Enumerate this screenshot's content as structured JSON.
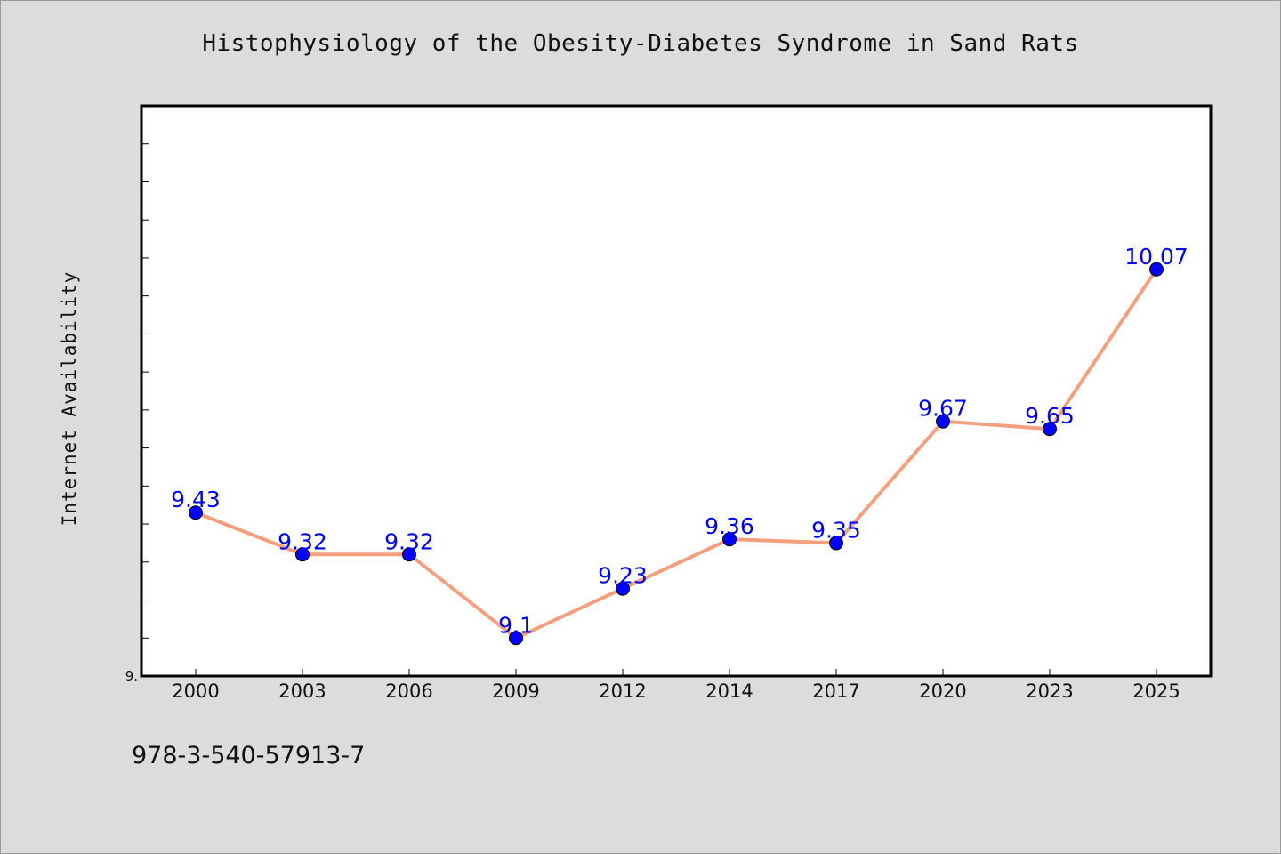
{
  "footer": {
    "code": "978-3-540-57913-7"
  },
  "chart_data": {
    "type": "line",
    "title": "Histophysiology of the Obesity-Diabetes Syndrome in Sand Rats",
    "xlabel": "",
    "ylabel": "Internet Availability",
    "categories": [
      "2000",
      "2003",
      "2006",
      "2009",
      "2012",
      "2014",
      "2017",
      "2020",
      "2023",
      "2025"
    ],
    "values": [
      9.43,
      9.32,
      9.32,
      9.1,
      9.23,
      9.36,
      9.35,
      9.67,
      9.65,
      10.07
    ],
    "data_labels": [
      "9.43",
      "9.32",
      "9.32",
      "9.1",
      "9.23",
      "9.36",
      "9.35",
      "9.67",
      "9.65",
      "10.07"
    ],
    "ylim": [
      9.0,
      10.5
    ],
    "y_tick_labels": [
      "9."
    ],
    "line_color": "#f4a07f",
    "marker_color": "#0000ff",
    "label_color": "#0000ff",
    "grid": false,
    "legend": "none"
  }
}
